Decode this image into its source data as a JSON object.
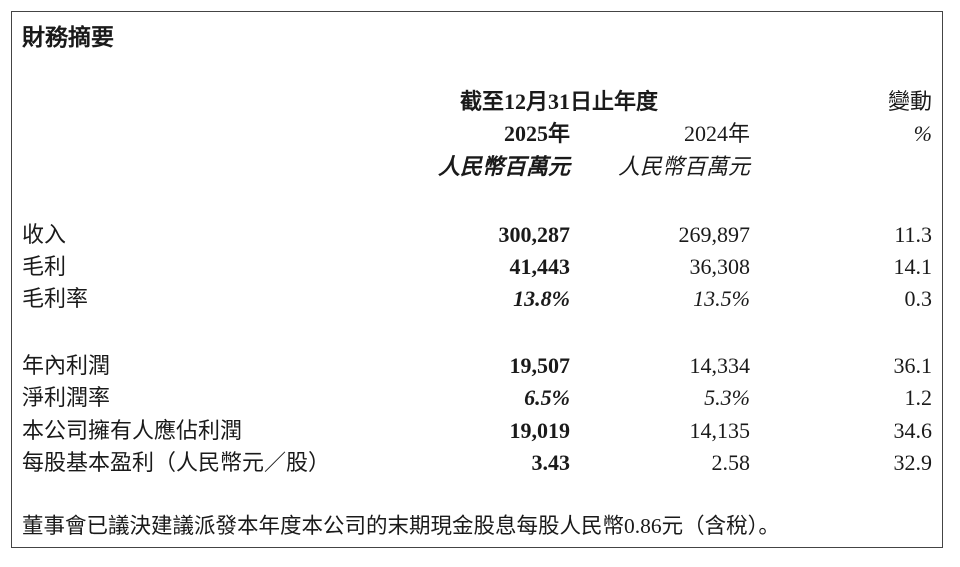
{
  "title": "財務摘要",
  "header": {
    "period": "截至12月31日止年度",
    "change": "變動",
    "change_unit": "%",
    "year_current": "2025年",
    "year_prior": "2024年",
    "unit_current": "人民幣百萬元",
    "unit_prior": "人民幣百萬元"
  },
  "rows": [
    {
      "label": "收入",
      "current": "300,287",
      "prior": "269,897",
      "change": "11.3"
    },
    {
      "label": "毛利",
      "current": "41,443",
      "prior": "36,308",
      "change": "14.1"
    },
    {
      "label": "毛利率",
      "current": "13.8%",
      "prior": "13.5%",
      "change": "0.3"
    },
    {
      "label": "年內利潤",
      "current": "19,507",
      "prior": "14,334",
      "change": "36.1"
    },
    {
      "label": "淨利潤率",
      "current": "6.5%",
      "prior": "5.3%",
      "change": "1.2"
    },
    {
      "label": "本公司擁有人應佔利潤",
      "current": "19,019",
      "prior": "14,135",
      "change": "34.6"
    },
    {
      "label": "每股基本盈利（人民幣元／股）",
      "current": "3.43",
      "prior": "2.58",
      "change": "32.9"
    }
  ],
  "footnote": "董事會已議決建議派發本年度本公司的末期現金股息每股人民幣0.86元（含稅）。"
}
